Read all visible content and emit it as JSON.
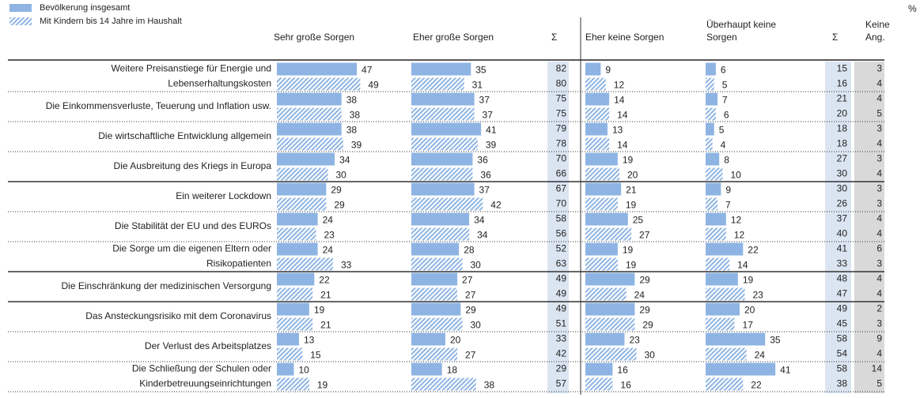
{
  "chart_data": {
    "type": "table-bar",
    "unit": "%",
    "series": [
      {
        "name": "Bevölkerung insgesamt",
        "color": "#8eb4e3"
      },
      {
        "name": "Mit Kindern bis 14 Jahre im Haushalt",
        "color": "#8eb4e3",
        "pattern": "hatched"
      }
    ],
    "columns": [
      [
        "Sehr große Sorgen"
      ],
      [
        "Eher große Sorgen"
      ],
      [
        "Σ"
      ],
      [
        "Eher keine Sorgen"
      ],
      [
        "Überhaupt keine",
        "Sorgen"
      ],
      [
        "Σ"
      ],
      [
        "Keine",
        "Ang."
      ]
    ],
    "rows": [
      {
        "label": [
          "Weitere Preisanstiege für Energie und",
          "Lebenserhaltungskosten"
        ],
        "values": [
          [
            47,
            35,
            82,
            9,
            6,
            15,
            3
          ],
          [
            49,
            31,
            80,
            12,
            5,
            16,
            4
          ]
        ]
      },
      {
        "label": [
          "Die Einkommensverluste, Teuerung und Inflation usw."
        ],
        "values": [
          [
            38,
            37,
            75,
            14,
            7,
            21,
            4
          ],
          [
            38,
            37,
            75,
            14,
            6,
            20,
            5
          ]
        ]
      },
      {
        "label": [
          "Die wirtschaftliche Entwicklung allgemein"
        ],
        "values": [
          [
            38,
            41,
            79,
            13,
            5,
            18,
            3
          ],
          [
            39,
            39,
            78,
            14,
            4,
            18,
            4
          ]
        ]
      },
      {
        "label": [
          "Die Ausbreitung des Kriegs in Europa"
        ],
        "values": [
          [
            34,
            36,
            70,
            19,
            8,
            27,
            3
          ],
          [
            30,
            36,
            66,
            20,
            10,
            30,
            4
          ]
        ]
      },
      {
        "label": [
          "Ein weiterer Lockdown"
        ],
        "values": [
          [
            29,
            37,
            67,
            21,
            9,
            30,
            3
          ],
          [
            29,
            42,
            70,
            19,
            7,
            26,
            3
          ]
        ]
      },
      {
        "label": [
          "Die Stabilität der EU und des EUROs"
        ],
        "values": [
          [
            24,
            34,
            58,
            25,
            12,
            37,
            4
          ],
          [
            23,
            34,
            56,
            27,
            12,
            40,
            4
          ]
        ]
      },
      {
        "label": [
          "Die Sorge um die eigenen Eltern oder",
          "Risikopatienten"
        ],
        "values": [
          [
            24,
            28,
            52,
            19,
            22,
            41,
            6
          ],
          [
            33,
            30,
            63,
            19,
            14,
            33,
            3
          ]
        ]
      },
      {
        "label": [
          "Die Einschränkung der medizinischen Versorgung"
        ],
        "values": [
          [
            22,
            27,
            49,
            29,
            19,
            48,
            4
          ],
          [
            21,
            27,
            49,
            24,
            23,
            47,
            4
          ]
        ]
      },
      {
        "label": [
          "Das Ansteckungsrisiko mit dem Coronavirus"
        ],
        "values": [
          [
            19,
            29,
            49,
            29,
            20,
            49,
            2
          ],
          [
            21,
            30,
            51,
            29,
            17,
            45,
            3
          ]
        ]
      },
      {
        "label": [
          "Der Verlust des Arbeitsplatzes"
        ],
        "values": [
          [
            13,
            20,
            33,
            23,
            35,
            58,
            9
          ],
          [
            15,
            27,
            42,
            30,
            24,
            54,
            4
          ]
        ]
      },
      {
        "label": [
          "Die Schließung der Schulen oder",
          "Kinderbetreuungseinrichtungen"
        ],
        "values": [
          [
            10,
            18,
            29,
            16,
            41,
            58,
            14
          ],
          [
            19,
            38,
            57,
            16,
            22,
            38,
            5
          ]
        ]
      }
    ]
  }
}
